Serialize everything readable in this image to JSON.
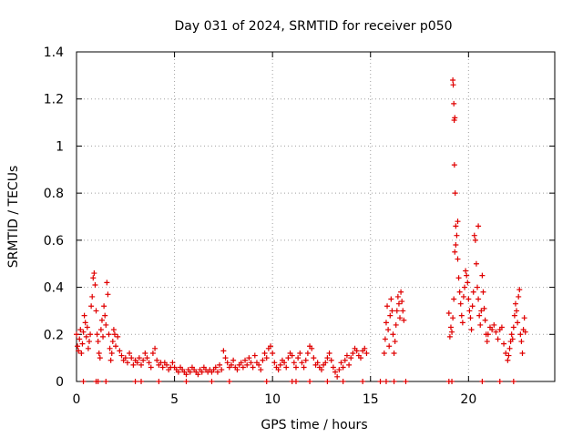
{
  "chart_data": {
    "type": "scatter",
    "title": "Day 031 of 2024, SRMTID for receiver p050",
    "xlabel": "GPS time / hours",
    "ylabel": "SRMTID / TECUs",
    "xlim": [
      0,
      24.4
    ],
    "ylim": [
      0,
      1.4
    ],
    "xticks": [
      0,
      5,
      10,
      15,
      20
    ],
    "yticks": [
      0,
      0.2,
      0.4,
      0.6,
      0.8,
      1,
      1.2,
      1.4
    ],
    "ytick_labels": [
      "0",
      "0.2",
      "0.4",
      "0.6",
      "0.8",
      "1",
      "1.2",
      "1.4"
    ],
    "grid": true,
    "marker": "+",
    "marker_color": "#e00000",
    "series": [
      {
        "name": "p050",
        "points": [
          [
            0.0,
            0.2
          ],
          [
            0.05,
            0.15
          ],
          [
            0.1,
            0.13
          ],
          [
            0.15,
            0.18
          ],
          [
            0.2,
            0.22
          ],
          [
            0.25,
            0.12
          ],
          [
            0.3,
            0.16
          ],
          [
            0.35,
            0.21
          ],
          [
            0.4,
            0.28
          ],
          [
            0.45,
            0.25
          ],
          [
            0.5,
            0.19
          ],
          [
            0.55,
            0.23
          ],
          [
            0.6,
            0.14
          ],
          [
            0.65,
            0.17
          ],
          [
            0.7,
            0.2
          ],
          [
            0.75,
            0.32
          ],
          [
            0.8,
            0.36
          ],
          [
            0.85,
            0.44
          ],
          [
            0.9,
            0.46
          ],
          [
            0.95,
            0.41
          ],
          [
            1.0,
            0.3
          ],
          [
            1.05,
            0.2
          ],
          [
            1.1,
            0.17
          ],
          [
            1.15,
            0.12
          ],
          [
            1.2,
            0.1
          ],
          [
            1.25,
            0.22
          ],
          [
            1.3,
            0.26
          ],
          [
            1.35,
            0.19
          ],
          [
            1.4,
            0.32
          ],
          [
            1.45,
            0.28
          ],
          [
            1.5,
            0.24
          ],
          [
            1.55,
            0.42
          ],
          [
            1.6,
            0.37
          ],
          [
            1.65,
            0.2
          ],
          [
            1.7,
            0.14
          ],
          [
            1.75,
            0.09
          ],
          [
            1.8,
            0.12
          ],
          [
            1.85,
            0.17
          ],
          [
            1.9,
            0.22
          ],
          [
            1.95,
            0.2
          ],
          [
            2.0,
            0.15
          ],
          [
            2.1,
            0.19
          ],
          [
            2.2,
            0.13
          ],
          [
            2.3,
            0.11
          ],
          [
            2.4,
            0.09
          ],
          [
            2.5,
            0.1
          ],
          [
            2.6,
            0.08
          ],
          [
            2.7,
            0.12
          ],
          [
            2.8,
            0.1
          ],
          [
            2.9,
            0.07
          ],
          [
            3.0,
            0.09
          ],
          [
            3.1,
            0.08
          ],
          [
            3.2,
            0.1
          ],
          [
            3.3,
            0.07
          ],
          [
            3.4,
            0.09
          ],
          [
            3.5,
            0.12
          ],
          [
            3.6,
            0.1
          ],
          [
            3.7,
            0.08
          ],
          [
            3.8,
            0.06
          ],
          [
            3.9,
            0.12
          ],
          [
            4.0,
            0.14
          ],
          [
            4.1,
            0.09
          ],
          [
            4.2,
            0.07
          ],
          [
            4.3,
            0.08
          ],
          [
            4.4,
            0.06
          ],
          [
            4.5,
            0.08
          ],
          [
            4.6,
            0.07
          ],
          [
            4.7,
            0.05
          ],
          [
            4.8,
            0.06
          ],
          [
            4.9,
            0.08
          ],
          [
            5.0,
            0.06
          ],
          [
            5.1,
            0.05
          ],
          [
            5.2,
            0.04
          ],
          [
            5.3,
            0.06
          ],
          [
            5.4,
            0.05
          ],
          [
            5.5,
            0.04
          ],
          [
            5.6,
            0.03
          ],
          [
            5.7,
            0.05
          ],
          [
            5.8,
            0.04
          ],
          [
            5.9,
            0.06
          ],
          [
            6.0,
            0.05
          ],
          [
            6.1,
            0.04
          ],
          [
            6.2,
            0.03
          ],
          [
            6.3,
            0.05
          ],
          [
            6.4,
            0.04
          ],
          [
            6.5,
            0.06
          ],
          [
            6.6,
            0.05
          ],
          [
            6.7,
            0.04
          ],
          [
            6.8,
            0.05
          ],
          [
            6.9,
            0.04
          ],
          [
            7.0,
            0.05
          ],
          [
            7.1,
            0.06
          ],
          [
            7.2,
            0.04
          ],
          [
            7.3,
            0.07
          ],
          [
            7.4,
            0.05
          ],
          [
            7.5,
            0.13
          ],
          [
            7.6,
            0.1
          ],
          [
            7.7,
            0.08
          ],
          [
            7.8,
            0.06
          ],
          [
            7.9,
            0.07
          ],
          [
            8.0,
            0.09
          ],
          [
            8.1,
            0.06
          ],
          [
            8.2,
            0.05
          ],
          [
            8.3,
            0.07
          ],
          [
            8.4,
            0.08
          ],
          [
            8.5,
            0.06
          ],
          [
            8.6,
            0.09
          ],
          [
            8.7,
            0.07
          ],
          [
            8.8,
            0.1
          ],
          [
            8.9,
            0.08
          ],
          [
            9.0,
            0.06
          ],
          [
            9.1,
            0.11
          ],
          [
            9.2,
            0.08
          ],
          [
            9.3,
            0.07
          ],
          [
            9.4,
            0.05
          ],
          [
            9.5,
            0.09
          ],
          [
            9.6,
            0.12
          ],
          [
            9.7,
            0.1
          ],
          [
            9.8,
            0.14
          ],
          [
            9.9,
            0.15
          ],
          [
            10.0,
            0.12
          ],
          [
            10.1,
            0.08
          ],
          [
            10.2,
            0.06
          ],
          [
            10.3,
            0.05
          ],
          [
            10.4,
            0.07
          ],
          [
            10.5,
            0.09
          ],
          [
            10.6,
            0.08
          ],
          [
            10.7,
            0.06
          ],
          [
            10.8,
            0.1
          ],
          [
            10.9,
            0.12
          ],
          [
            11.0,
            0.11
          ],
          [
            11.1,
            0.08
          ],
          [
            11.2,
            0.06
          ],
          [
            11.3,
            0.1
          ],
          [
            11.4,
            0.12
          ],
          [
            11.5,
            0.08
          ],
          [
            11.6,
            0.06
          ],
          [
            11.7,
            0.09
          ],
          [
            11.8,
            0.12
          ],
          [
            11.9,
            0.15
          ],
          [
            12.0,
            0.14
          ],
          [
            12.1,
            0.1
          ],
          [
            12.2,
            0.07
          ],
          [
            12.3,
            0.08
          ],
          [
            12.4,
            0.06
          ],
          [
            12.5,
            0.05
          ],
          [
            12.6,
            0.07
          ],
          [
            12.7,
            0.08
          ],
          [
            12.8,
            0.1
          ],
          [
            12.9,
            0.12
          ],
          [
            13.0,
            0.09
          ],
          [
            13.1,
            0.06
          ],
          [
            13.2,
            0.04
          ],
          [
            13.3,
            0.02
          ],
          [
            13.4,
            0.05
          ],
          [
            13.5,
            0.08
          ],
          [
            13.6,
            0.06
          ],
          [
            13.7,
            0.09
          ],
          [
            13.8,
            0.11
          ],
          [
            13.9,
            0.07
          ],
          [
            14.0,
            0.1
          ],
          [
            14.1,
            0.12
          ],
          [
            14.2,
            0.14
          ],
          [
            14.3,
            0.13
          ],
          [
            14.4,
            0.11
          ],
          [
            14.5,
            0.1
          ],
          [
            14.6,
            0.13
          ],
          [
            14.7,
            0.14
          ],
          [
            14.8,
            0.12
          ],
          [
            15.7,
            0.12
          ],
          [
            15.75,
            0.18
          ],
          [
            15.8,
            0.25
          ],
          [
            15.85,
            0.32
          ],
          [
            15.9,
            0.22
          ],
          [
            15.95,
            0.15
          ],
          [
            16.0,
            0.28
          ],
          [
            16.05,
            0.35
          ],
          [
            16.1,
            0.3
          ],
          [
            16.15,
            0.2
          ],
          [
            16.2,
            0.12
          ],
          [
            16.25,
            0.17
          ],
          [
            16.3,
            0.24
          ],
          [
            16.35,
            0.3
          ],
          [
            16.4,
            0.36
          ],
          [
            16.45,
            0.33
          ],
          [
            16.5,
            0.27
          ],
          [
            16.55,
            0.38
          ],
          [
            16.6,
            0.34
          ],
          [
            16.65,
            0.3
          ],
          [
            16.7,
            0.26
          ],
          [
            19.0,
            0.29
          ],
          [
            19.05,
            0.19
          ],
          [
            19.1,
            0.23
          ],
          [
            19.15,
            0.21
          ],
          [
            19.2,
            0.27
          ],
          [
            19.25,
            0.35
          ],
          [
            19.3,
            0.55
          ],
          [
            19.35,
            0.58
          ],
          [
            19.4,
            0.62
          ],
          [
            19.45,
            0.52
          ],
          [
            19.5,
            0.44
          ],
          [
            19.55,
            0.38
          ],
          [
            19.6,
            0.33
          ],
          [
            19.65,
            0.28
          ],
          [
            19.7,
            0.25
          ],
          [
            19.75,
            0.36
          ],
          [
            19.8,
            0.4
          ],
          [
            19.85,
            0.47
          ],
          [
            19.9,
            0.45
          ],
          [
            19.95,
            0.42
          ],
          [
            20.0,
            0.35
          ],
          [
            20.05,
            0.3
          ],
          [
            20.1,
            0.27
          ],
          [
            20.15,
            0.22
          ],
          [
            20.2,
            0.32
          ],
          [
            20.25,
            0.38
          ],
          [
            20.3,
            0.62
          ],
          [
            20.35,
            0.6
          ],
          [
            20.4,
            0.5
          ],
          [
            20.45,
            0.4
          ],
          [
            20.5,
            0.35
          ],
          [
            20.55,
            0.28
          ],
          [
            20.6,
            0.24
          ],
          [
            20.65,
            0.3
          ],
          [
            20.7,
            0.45
          ],
          [
            20.75,
            0.38
          ],
          [
            20.8,
            0.31
          ],
          [
            20.85,
            0.26
          ],
          [
            20.9,
            0.2
          ],
          [
            20.95,
            0.17
          ],
          [
            21.0,
            0.2
          ],
          [
            21.1,
            0.23
          ],
          [
            21.2,
            0.22
          ],
          [
            21.3,
            0.24
          ],
          [
            21.4,
            0.21
          ],
          [
            21.5,
            0.18
          ],
          [
            21.6,
            0.22
          ],
          [
            21.7,
            0.23
          ],
          [
            21.8,
            0.16
          ],
          [
            21.9,
            0.12
          ],
          [
            22.0,
            0.09
          ],
          [
            22.05,
            0.11
          ],
          [
            22.1,
            0.14
          ],
          [
            22.15,
            0.17
          ],
          [
            22.2,
            0.2
          ],
          [
            22.25,
            0.18
          ],
          [
            22.3,
            0.23
          ],
          [
            22.35,
            0.28
          ],
          [
            22.4,
            0.33
          ],
          [
            22.45,
            0.3
          ],
          [
            22.5,
            0.25
          ],
          [
            22.55,
            0.36
          ],
          [
            22.6,
            0.39
          ],
          [
            22.65,
            0.2
          ],
          [
            22.7,
            0.17
          ],
          [
            22.75,
            0.12
          ],
          [
            22.8,
            0.22
          ],
          [
            22.85,
            0.27
          ],
          [
            22.9,
            0.21
          ],
          [
            19.2,
            1.28
          ],
          [
            19.22,
            1.26
          ],
          [
            19.25,
            1.18
          ],
          [
            19.27,
            1.11
          ],
          [
            19.3,
            1.12
          ],
          [
            19.28,
            0.92
          ],
          [
            19.32,
            0.8
          ],
          [
            19.35,
            0.66
          ],
          [
            19.45,
            0.68
          ],
          [
            20.5,
            0.66
          ],
          [
            0.35,
            0.0
          ],
          [
            1.0,
            0.0
          ],
          [
            1.1,
            0.0
          ],
          [
            1.5,
            0.0
          ],
          [
            3.0,
            0.0
          ],
          [
            3.3,
            0.0
          ],
          [
            4.2,
            0.0
          ],
          [
            5.6,
            0.0
          ],
          [
            6.9,
            0.0
          ],
          [
            7.8,
            0.0
          ],
          [
            9.7,
            0.0
          ],
          [
            11.0,
            0.0
          ],
          [
            11.2,
            0.0
          ],
          [
            11.9,
            0.0
          ],
          [
            12.8,
            0.0
          ],
          [
            13.6,
            0.0
          ],
          [
            14.6,
            0.0
          ],
          [
            15.5,
            0.0
          ],
          [
            15.8,
            0.0
          ],
          [
            16.2,
            0.0
          ],
          [
            16.8,
            0.0
          ],
          [
            19.0,
            0.0
          ],
          [
            19.15,
            0.0
          ],
          [
            20.7,
            0.0
          ],
          [
            21.6,
            0.0
          ],
          [
            22.3,
            0.0
          ]
        ]
      }
    ]
  }
}
